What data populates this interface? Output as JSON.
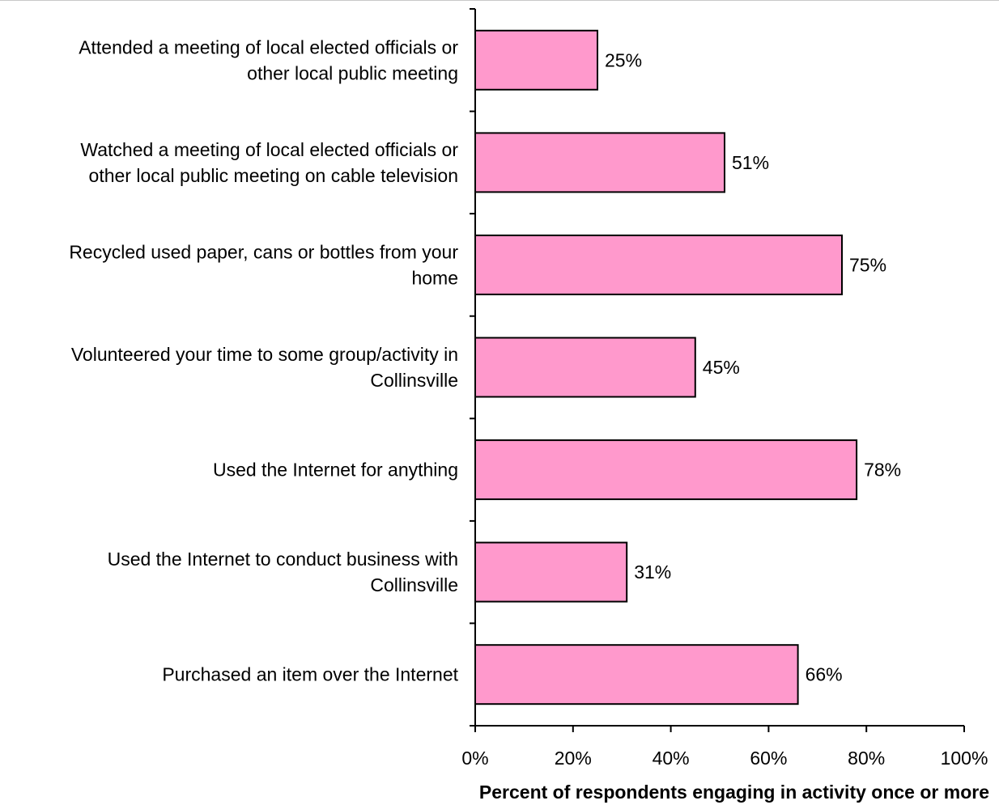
{
  "chart_data": {
    "type": "bar",
    "orientation": "horizontal",
    "categories": [
      [
        "Attended a meeting of local elected officials or",
        "other local public meeting"
      ],
      [
        "Watched a meeting of local elected officials or",
        "other local public meeting on cable television"
      ],
      [
        "Recycled used paper, cans or bottles from your",
        "home"
      ],
      [
        "Volunteered your time to some group/activity in",
        "Collinsville"
      ],
      [
        "Used the Internet for anything"
      ],
      [
        "Used the Internet to conduct business with",
        "Collinsville"
      ],
      [
        "Purchased an item over the Internet"
      ]
    ],
    "values": [
      25,
      51,
      75,
      45,
      78,
      31,
      66
    ],
    "value_labels": [
      "25%",
      "51%",
      "75%",
      "45%",
      "78%",
      "31%",
      "66%"
    ],
    "xlabel": "Percent of respondents engaging in activity once or more",
    "ylabel": "",
    "xlim": [
      0,
      100
    ],
    "x_ticks": [
      0,
      20,
      40,
      60,
      80,
      100
    ],
    "x_tick_labels": [
      "0%",
      "20%",
      "40%",
      "60%",
      "80%",
      "100%"
    ],
    "grid": false,
    "legend": "none",
    "colors": {
      "bar_fill": "#ff99cc",
      "bar_stroke": "#000000",
      "axis": "#000000"
    }
  }
}
